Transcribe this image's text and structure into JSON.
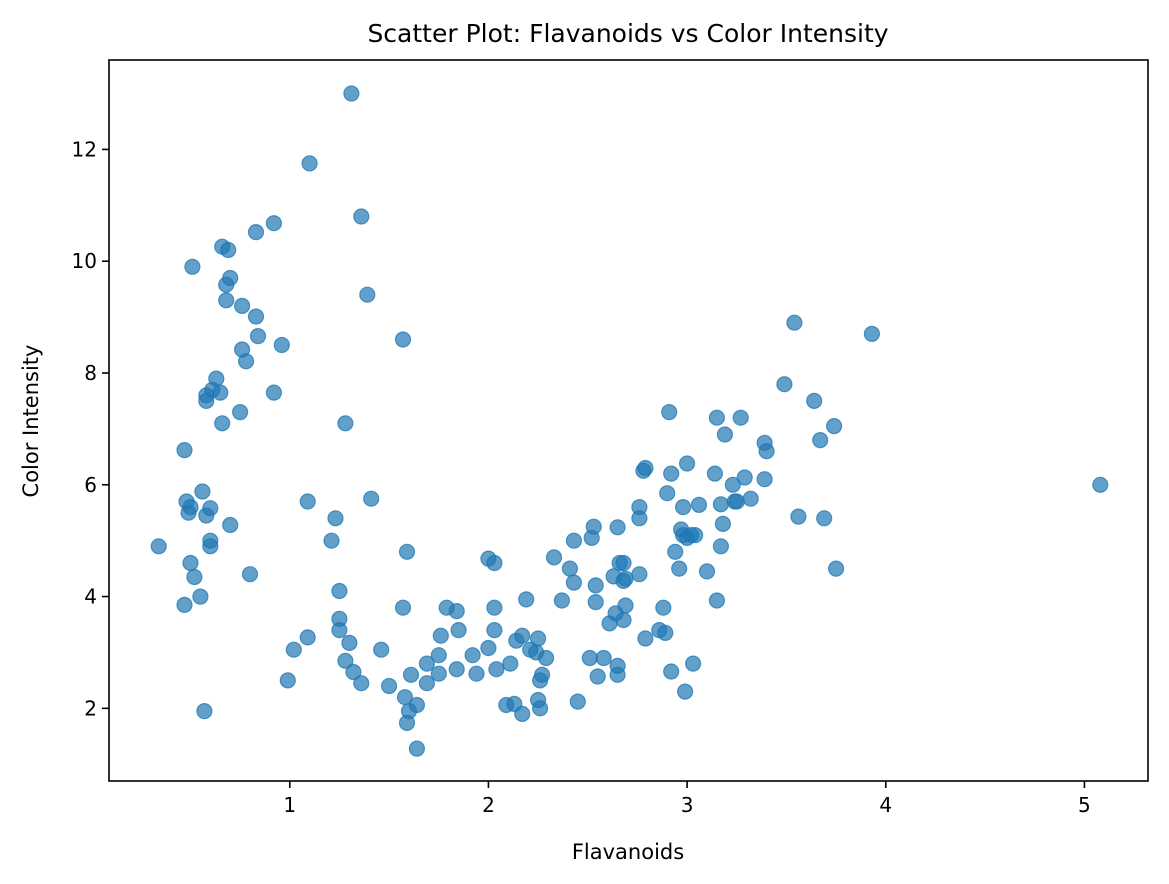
{
  "chart_data": {
    "type": "scatter",
    "title": "Scatter Plot: Flavanoids vs Color Intensity",
    "xlabel": "Flavanoids",
    "ylabel": "Color Intensity",
    "xlim": [
      0.09,
      5.32
    ],
    "ylim": [
      0.7,
      13.6
    ],
    "xticks": [
      1,
      2,
      3,
      4,
      5
    ],
    "yticks": [
      2,
      4,
      6,
      8,
      10,
      12
    ],
    "grid": false,
    "point_color": "#1f77b4",
    "point_alpha": 0.7,
    "points": [
      [
        0.34,
        4.9
      ],
      [
        0.47,
        3.85
      ],
      [
        0.47,
        6.62
      ],
      [
        0.48,
        5.7
      ],
      [
        0.49,
        5.5
      ],
      [
        0.5,
        4.6
      ],
      [
        0.5,
        5.6
      ],
      [
        0.51,
        9.9
      ],
      [
        0.52,
        4.35
      ],
      [
        0.55,
        4.0
      ],
      [
        0.56,
        5.88
      ],
      [
        0.57,
        1.95
      ],
      [
        0.58,
        7.5
      ],
      [
        0.58,
        7.6
      ],
      [
        0.58,
        5.45
      ],
      [
        0.6,
        5.58
      ],
      [
        0.6,
        5.0
      ],
      [
        0.6,
        4.9
      ],
      [
        0.61,
        7.7
      ],
      [
        0.63,
        7.9
      ],
      [
        0.65,
        7.65
      ],
      [
        0.66,
        7.1
      ],
      [
        0.66,
        10.26
      ],
      [
        0.68,
        9.58
      ],
      [
        0.68,
        9.3
      ],
      [
        0.69,
        10.2
      ],
      [
        0.7,
        9.7
      ],
      [
        0.7,
        5.28
      ],
      [
        0.75,
        7.3
      ],
      [
        0.76,
        9.2
      ],
      [
        0.76,
        8.42
      ],
      [
        0.78,
        8.21
      ],
      [
        0.8,
        4.4
      ],
      [
        0.83,
        10.52
      ],
      [
        0.83,
        9.01
      ],
      [
        0.84,
        8.66
      ],
      [
        0.92,
        10.68
      ],
      [
        0.92,
        7.65
      ],
      [
        0.96,
        8.5
      ],
      [
        0.99,
        2.5
      ],
      [
        1.02,
        3.05
      ],
      [
        1.09,
        3.27
      ],
      [
        1.09,
        5.7
      ],
      [
        1.1,
        11.75
      ],
      [
        1.21,
        5.0
      ],
      [
        1.23,
        5.4
      ],
      [
        1.25,
        3.6
      ],
      [
        1.25,
        4.1
      ],
      [
        1.25,
        3.4
      ],
      [
        1.28,
        2.85
      ],
      [
        1.28,
        7.1
      ],
      [
        1.3,
        3.17
      ],
      [
        1.31,
        13.0
      ],
      [
        1.32,
        2.65
      ],
      [
        1.36,
        10.8
      ],
      [
        1.36,
        2.45
      ],
      [
        1.39,
        9.4
      ],
      [
        1.41,
        5.75
      ],
      [
        1.46,
        3.05
      ],
      [
        1.5,
        2.4
      ],
      [
        1.57,
        8.6
      ],
      [
        1.57,
        3.8
      ],
      [
        1.58,
        2.2
      ],
      [
        1.59,
        4.8
      ],
      [
        1.59,
        1.74
      ],
      [
        1.6,
        1.95
      ],
      [
        1.61,
        2.6
      ],
      [
        1.64,
        2.06
      ],
      [
        1.64,
        1.28
      ],
      [
        1.69,
        2.8
      ],
      [
        1.69,
        2.45
      ],
      [
        1.75,
        2.95
      ],
      [
        1.75,
        2.62
      ],
      [
        1.76,
        3.3
      ],
      [
        1.79,
        3.8
      ],
      [
        1.84,
        3.74
      ],
      [
        1.84,
        2.7
      ],
      [
        1.85,
        3.4
      ],
      [
        1.92,
        2.95
      ],
      [
        1.94,
        2.62
      ],
      [
        2.0,
        4.68
      ],
      [
        2.0,
        3.08
      ],
      [
        2.03,
        4.6
      ],
      [
        2.03,
        3.8
      ],
      [
        2.03,
        3.4
      ],
      [
        2.04,
        2.7
      ],
      [
        2.09,
        2.06
      ],
      [
        2.11,
        2.8
      ],
      [
        2.13,
        2.08
      ],
      [
        2.14,
        3.21
      ],
      [
        2.17,
        3.3
      ],
      [
        2.17,
        1.9
      ],
      [
        2.19,
        3.95
      ],
      [
        2.21,
        3.05
      ],
      [
        2.24,
        3.0
      ],
      [
        2.25,
        3.25
      ],
      [
        2.25,
        2.15
      ],
      [
        2.26,
        2.5
      ],
      [
        2.26,
        2.0
      ],
      [
        2.27,
        2.6
      ],
      [
        2.29,
        2.9
      ],
      [
        2.33,
        4.7
      ],
      [
        2.37,
        3.93
      ],
      [
        2.41,
        4.5
      ],
      [
        2.43,
        5.0
      ],
      [
        2.43,
        4.25
      ],
      [
        2.45,
        2.12
      ],
      [
        2.51,
        2.9
      ],
      [
        2.52,
        5.05
      ],
      [
        2.53,
        5.25
      ],
      [
        2.54,
        4.2
      ],
      [
        2.54,
        3.9
      ],
      [
        2.55,
        2.57
      ],
      [
        2.58,
        2.9
      ],
      [
        2.61,
        3.52
      ],
      [
        2.63,
        4.36
      ],
      [
        2.64,
        3.7
      ],
      [
        2.65,
        5.24
      ],
      [
        2.65,
        2.76
      ],
      [
        2.65,
        2.6
      ],
      [
        2.66,
        4.6
      ],
      [
        2.68,
        4.6
      ],
      [
        2.68,
        4.28
      ],
      [
        2.68,
        3.58
      ],
      [
        2.69,
        4.32
      ],
      [
        2.69,
        3.84
      ],
      [
        2.76,
        5.6
      ],
      [
        2.76,
        5.4
      ],
      [
        2.76,
        4.4
      ],
      [
        2.78,
        6.25
      ],
      [
        2.79,
        6.3
      ],
      [
        2.79,
        3.25
      ],
      [
        2.86,
        3.4
      ],
      [
        2.88,
        3.8
      ],
      [
        2.89,
        3.35
      ],
      [
        2.9,
        5.85
      ],
      [
        2.91,
        7.3
      ],
      [
        2.92,
        6.2
      ],
      [
        2.92,
        2.66
      ],
      [
        2.94,
        4.8
      ],
      [
        2.96,
        4.5
      ],
      [
        2.97,
        5.2
      ],
      [
        2.98,
        5.6
      ],
      [
        2.98,
        5.1
      ],
      [
        2.99,
        2.3
      ],
      [
        3.0,
        6.38
      ],
      [
        3.0,
        5.05
      ],
      [
        3.02,
        5.1
      ],
      [
        3.03,
        2.8
      ],
      [
        3.04,
        5.1
      ],
      [
        3.06,
        5.64
      ],
      [
        3.1,
        4.45
      ],
      [
        3.14,
        6.2
      ],
      [
        3.15,
        7.2
      ],
      [
        3.15,
        3.93
      ],
      [
        3.17,
        5.65
      ],
      [
        3.17,
        4.9
      ],
      [
        3.18,
        5.3
      ],
      [
        3.19,
        6.9
      ],
      [
        3.23,
        6.0
      ],
      [
        3.24,
        5.7
      ],
      [
        3.25,
        5.7
      ],
      [
        3.27,
        7.2
      ],
      [
        3.29,
        6.13
      ],
      [
        3.32,
        5.75
      ],
      [
        3.39,
        6.75
      ],
      [
        3.39,
        6.1
      ],
      [
        3.4,
        6.6
      ],
      [
        3.49,
        7.8
      ],
      [
        3.54,
        8.9
      ],
      [
        3.56,
        5.43
      ],
      [
        3.64,
        7.5
      ],
      [
        3.67,
        6.8
      ],
      [
        3.69,
        5.4
      ],
      [
        3.74,
        7.05
      ],
      [
        3.75,
        4.5
      ],
      [
        3.93,
        8.7
      ],
      [
        5.08,
        6.0
      ]
    ]
  }
}
